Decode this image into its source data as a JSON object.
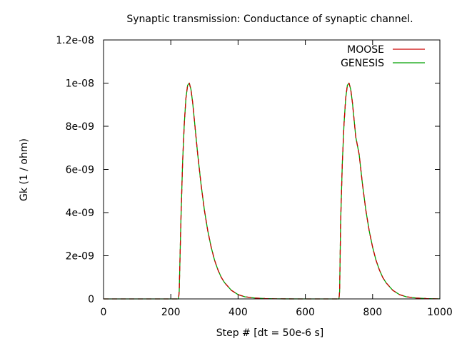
{
  "chart_data": {
    "type": "line",
    "title": "Synaptic transmission: Conductance of synaptic channel.",
    "xlabel": "Step # [dt = 50e-6 s]",
    "ylabel": "Gk (1 / ohm)",
    "xlim": [
      0,
      1000
    ],
    "ylim": [
      0,
      1.2e-08
    ],
    "x_ticks": [
      0,
      200,
      400,
      600,
      800,
      1000
    ],
    "x_tick_labels": [
      "0",
      "200",
      "400",
      "600",
      "800",
      "1000"
    ],
    "y_ticks": [
      0,
      2e-09,
      4e-09,
      6e-09,
      8e-09,
      1e-08,
      1.2e-08
    ],
    "y_tick_labels": [
      "0",
      "2e-09",
      "4e-09",
      "6e-09",
      "8e-09",
      "1e-08",
      "1.2e-08"
    ],
    "grid": false,
    "legend_position": "top-right",
    "series": [
      {
        "name": "MOOSE",
        "color": "#cc0000",
        "dashed": true,
        "x": [
          0,
          223,
          225,
          230,
          235,
          240,
          245,
          250,
          255,
          260,
          265,
          270,
          275,
          280,
          290,
          300,
          310,
          320,
          330,
          340,
          350,
          360,
          380,
          400,
          420,
          450,
          480,
          510,
          540,
          600,
          660,
          700,
          702,
          705,
          710,
          715,
          720,
          725,
          730,
          735,
          740,
          745,
          750,
          760,
          770,
          780,
          790,
          800,
          810,
          820,
          830,
          840,
          860,
          880,
          900,
          930,
          960,
          990,
          1000
        ],
        "y": [
          0,
          0,
          3.5e-10,
          3.6e-09,
          6.3e-09,
          8.1e-09,
          9.3e-09,
          9.9e-09,
          1e-08,
          9.7e-09,
          9.1e-09,
          8.3e-09,
          7.5e-09,
          6.7e-09,
          5.3e-09,
          4.1e-09,
          3.15e-09,
          2.4e-09,
          1.8e-09,
          1.35e-09,
          1e-09,
          7.5e-10,
          4e-10,
          2e-10,
          1e-10,
          4e-11,
          1.5e-11,
          5e-12,
          2e-12,
          0,
          0,
          0,
          3.5e-10,
          3.6e-09,
          6.3e-09,
          8.1e-09,
          9.3e-09,
          9.9e-09,
          1e-08,
          9.7e-09,
          9.1e-09,
          8.3e-09,
          7.5e-09,
          6.7e-09,
          5.3e-09,
          4.1e-09,
          3.15e-09,
          2.4e-09,
          1.8e-09,
          1.35e-09,
          1e-09,
          7.5e-10,
          4e-10,
          2e-10,
          1e-10,
          4e-11,
          1.5e-11,
          5e-12,
          3e-12
        ]
      },
      {
        "name": "GENESIS",
        "color": "#00a000",
        "dashed": false,
        "x": [
          0,
          223,
          225,
          230,
          235,
          240,
          245,
          250,
          255,
          260,
          265,
          270,
          275,
          280,
          290,
          300,
          310,
          320,
          330,
          340,
          350,
          360,
          380,
          400,
          420,
          450,
          480,
          510,
          540,
          600,
          660,
          700,
          702,
          705,
          710,
          715,
          720,
          725,
          730,
          735,
          740,
          745,
          750,
          760,
          770,
          780,
          790,
          800,
          810,
          820,
          830,
          840,
          860,
          880,
          900,
          930,
          960,
          990,
          1000
        ],
        "y": [
          0,
          0,
          3.5e-10,
          3.6e-09,
          6.3e-09,
          8.1e-09,
          9.3e-09,
          9.9e-09,
          1e-08,
          9.7e-09,
          9.1e-09,
          8.3e-09,
          7.5e-09,
          6.7e-09,
          5.3e-09,
          4.1e-09,
          3.15e-09,
          2.4e-09,
          1.8e-09,
          1.35e-09,
          1e-09,
          7.5e-10,
          4e-10,
          2e-10,
          1e-10,
          4e-11,
          1.5e-11,
          5e-12,
          2e-12,
          0,
          0,
          0,
          3.5e-10,
          3.6e-09,
          6.3e-09,
          8.1e-09,
          9.3e-09,
          9.9e-09,
          1e-08,
          9.7e-09,
          9.1e-09,
          8.3e-09,
          7.5e-09,
          6.7e-09,
          5.3e-09,
          4.1e-09,
          3.15e-09,
          2.4e-09,
          1.8e-09,
          1.35e-09,
          1e-09,
          7.5e-10,
          4e-10,
          2e-10,
          1e-10,
          4e-11,
          1.5e-11,
          5e-12,
          3e-12
        ]
      }
    ]
  }
}
